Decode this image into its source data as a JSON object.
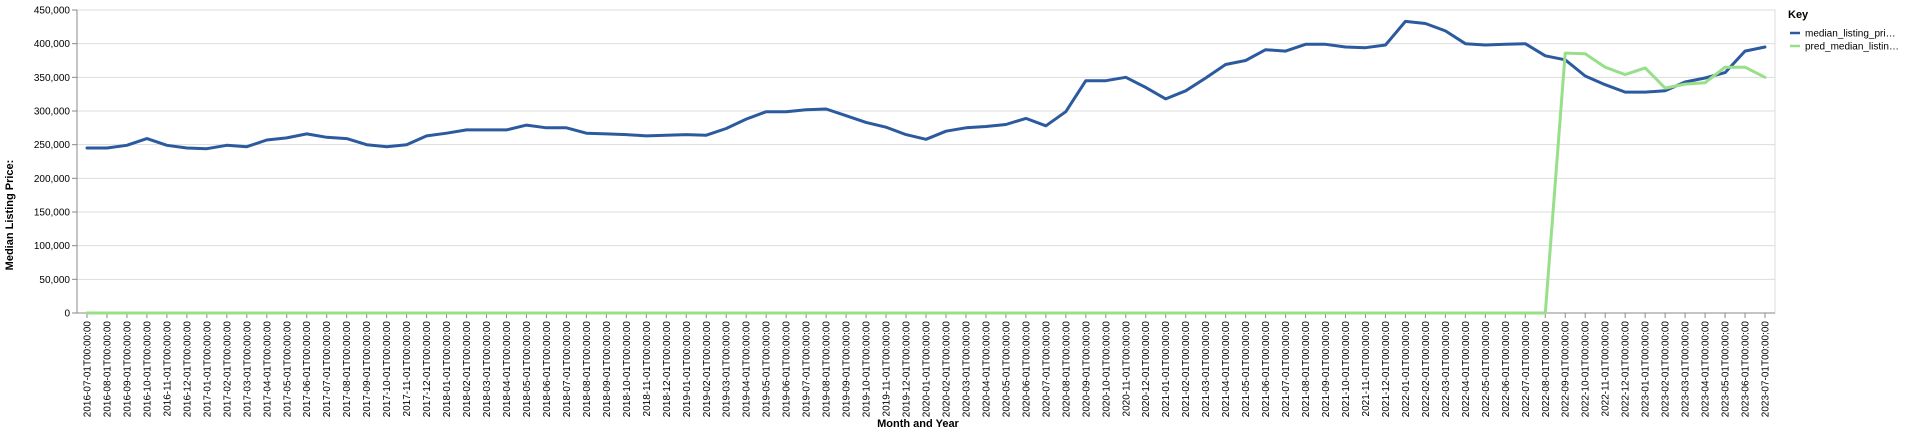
{
  "chart_data": {
    "type": "line",
    "xlabel": "Month and Year",
    "ylabel": "Median Listing Price:",
    "ylim": [
      0,
      450000
    ],
    "y_ticks": [
      0,
      50000,
      100000,
      150000,
      200000,
      250000,
      300000,
      350000,
      400000,
      450000
    ],
    "y_tick_labels": [
      "0",
      "50,000",
      "100,000",
      "150,000",
      "200,000",
      "250,000",
      "300,000",
      "350,000",
      "400,000",
      "450,000"
    ],
    "grid": true,
    "legend": {
      "title": "Key",
      "placement": "top-right"
    },
    "x": [
      "2016-07-01T00:00:00",
      "2016-08-01T00:00:00",
      "2016-09-01T00:00:00",
      "2016-10-01T00:00:00",
      "2016-11-01T00:00:00",
      "2016-12-01T00:00:00",
      "2017-01-01T00:00:00",
      "2017-02-01T00:00:00",
      "2017-03-01T00:00:00",
      "2017-04-01T00:00:00",
      "2017-05-01T00:00:00",
      "2017-06-01T00:00:00",
      "2017-07-01T00:00:00",
      "2017-08-01T00:00:00",
      "2017-09-01T00:00:00",
      "2017-10-01T00:00:00",
      "2017-11-01T00:00:00",
      "2017-12-01T00:00:00",
      "2018-01-01T00:00:00",
      "2018-02-01T00:00:00",
      "2018-03-01T00:00:00",
      "2018-04-01T00:00:00",
      "2018-05-01T00:00:00",
      "2018-06-01T00:00:00",
      "2018-07-01T00:00:00",
      "2018-08-01T00:00:00",
      "2018-09-01T00:00:00",
      "2018-10-01T00:00:00",
      "2018-11-01T00:00:00",
      "2018-12-01T00:00:00",
      "2019-01-01T00:00:00",
      "2019-02-01T00:00:00",
      "2019-03-01T00:00:00",
      "2019-04-01T00:00:00",
      "2019-05-01T00:00:00",
      "2019-06-01T00:00:00",
      "2019-07-01T00:00:00",
      "2019-08-01T00:00:00",
      "2019-09-01T00:00:00",
      "2019-10-01T00:00:00",
      "2019-11-01T00:00:00",
      "2019-12-01T00:00:00",
      "2020-01-01T00:00:00",
      "2020-02-01T00:00:00",
      "2020-03-01T00:00:00",
      "2020-04-01T00:00:00",
      "2020-05-01T00:00:00",
      "2020-06-01T00:00:00",
      "2020-07-01T00:00:00",
      "2020-08-01T00:00:00",
      "2020-09-01T00:00:00",
      "2020-10-01T00:00:00",
      "2020-11-01T00:00:00",
      "2020-12-01T00:00:00",
      "2021-01-01T00:00:00",
      "2021-02-01T00:00:00",
      "2021-03-01T00:00:00",
      "2021-04-01T00:00:00",
      "2021-05-01T00:00:00",
      "2021-06-01T00:00:00",
      "2021-07-01T00:00:00",
      "2021-08-01T00:00:00",
      "2021-09-01T00:00:00",
      "2021-10-01T00:00:00",
      "2021-11-01T00:00:00",
      "2021-12-01T00:00:00",
      "2022-01-01T00:00:00",
      "2022-02-01T00:00:00",
      "2022-03-01T00:00:00",
      "2022-04-01T00:00:00",
      "2022-05-01T00:00:00",
      "2022-06-01T00:00:00",
      "2022-07-01T00:00:00",
      "2022-08-01T00:00:00",
      "2022-09-01T00:00:00",
      "2022-10-01T00:00:00",
      "2022-11-01T00:00:00",
      "2022-12-01T00:00:00",
      "2023-01-01T00:00:00",
      "2023-02-01T00:00:00",
      "2023-03-01T00:00:00",
      "2023-04-01T00:00:00",
      "2023-05-01T00:00:00",
      "2023-06-01T00:00:00",
      "2023-07-01T00:00:00"
    ],
    "series": [
      {
        "name": "median_listing_pri…",
        "color": "#2c5a9e",
        "values": [
          245000,
          245000,
          249000,
          259000,
          249000,
          245000,
          244000,
          249000,
          247000,
          257000,
          260000,
          266000,
          261000,
          259000,
          250000,
          247000,
          250000,
          263000,
          267000,
          272000,
          272000,
          272000,
          279000,
          275000,
          275000,
          267000,
          266000,
          265000,
          263000,
          264000,
          265000,
          264000,
          274000,
          288000,
          299000,
          299000,
          302000,
          303000,
          293000,
          283000,
          276000,
          265000,
          258000,
          270000,
          275000,
          277000,
          280000,
          289000,
          278000,
          299000,
          345000,
          345000,
          350000,
          335000,
          318000,
          330000,
          349000,
          369000,
          375000,
          391000,
          389000,
          399000,
          399000,
          395000,
          394000,
          398000,
          433000,
          430000,
          419000,
          400000,
          398000,
          399000,
          400000,
          382000,
          376000,
          352000,
          339000,
          328000,
          328000,
          330000,
          343000,
          349000,
          357000,
          389000,
          395000
        ]
      },
      {
        "name": "pred_median_listin…",
        "color": "#98df8a",
        "values": [
          0,
          0,
          0,
          0,
          0,
          0,
          0,
          0,
          0,
          0,
          0,
          0,
          0,
          0,
          0,
          0,
          0,
          0,
          0,
          0,
          0,
          0,
          0,
          0,
          0,
          0,
          0,
          0,
          0,
          0,
          0,
          0,
          0,
          0,
          0,
          0,
          0,
          0,
          0,
          0,
          0,
          0,
          0,
          0,
          0,
          0,
          0,
          0,
          0,
          0,
          0,
          0,
          0,
          0,
          0,
          0,
          0,
          0,
          0,
          0,
          0,
          0,
          0,
          0,
          0,
          0,
          0,
          0,
          0,
          0,
          0,
          0,
          0,
          0,
          386000,
          385000,
          365000,
          354000,
          364000,
          334000,
          340000,
          342000,
          365000,
          365000,
          350000
        ]
      }
    ]
  }
}
